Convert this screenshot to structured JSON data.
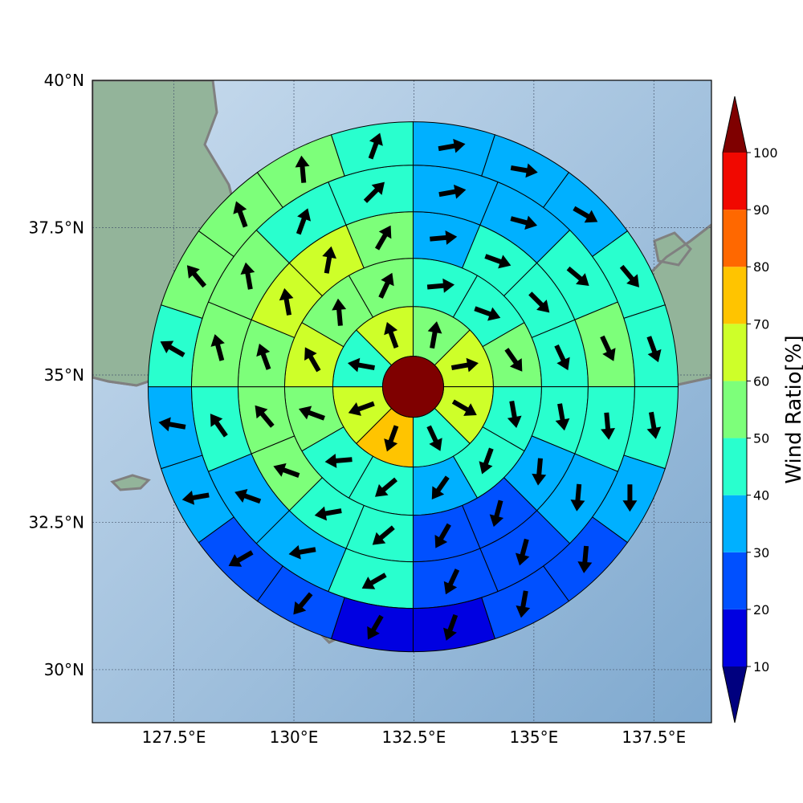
{
  "map": {
    "lat_ticks": [
      {
        "value": 40.0,
        "label": "40°N"
      },
      {
        "value": 37.5,
        "label": "37.5°N"
      },
      {
        "value": 35.0,
        "label": "35°N"
      },
      {
        "value": 32.5,
        "label": "32.5°N"
      },
      {
        "value": 30.0,
        "label": "30°N"
      }
    ],
    "lon_ticks": [
      {
        "value": 127.5,
        "label": "127.5°E"
      },
      {
        "value": 130.0,
        "label": "130°E"
      },
      {
        "value": 132.5,
        "label": "132.5°E"
      },
      {
        "value": 135.0,
        "label": "135°E"
      },
      {
        "value": 137.5,
        "label": "137.5°E"
      }
    ],
    "extent": {
      "lon": [
        125.8,
        138.7
      ],
      "lat": [
        29.1,
        40.0
      ]
    },
    "center": {
      "lon": 132.5,
      "lat": 34.8
    },
    "colors": {
      "ocean_light": "#c9dcee",
      "ocean_dark": "#7fa9cf",
      "land": "#93b49a",
      "coast": "#808080"
    }
  },
  "colorbar": {
    "label": "Wind Ratio[%]",
    "ticks": [
      "10",
      "20",
      "30",
      "40",
      "50",
      "60",
      "70",
      "80",
      "90",
      "100"
    ],
    "bins": [
      {
        "min": 0,
        "max": 10,
        "color": "#00007f"
      },
      {
        "min": 10,
        "max": 20,
        "color": "#0000e1"
      },
      {
        "min": 20,
        "max": 30,
        "color": "#0050ff"
      },
      {
        "min": 30,
        "max": 40,
        "color": "#00b0ff"
      },
      {
        "min": 40,
        "max": 50,
        "color": "#29ffce"
      },
      {
        "min": 50,
        "max": 60,
        "color": "#7dff7a"
      },
      {
        "min": 60,
        "max": 70,
        "color": "#ceff29"
      },
      {
        "min": 70,
        "max": 80,
        "color": "#ffc400"
      },
      {
        "min": 80,
        "max": 90,
        "color": "#ff6800"
      },
      {
        "min": 90,
        "max": 100,
        "color": "#f10800"
      },
      {
        "min": 100,
        "max": 110,
        "color": "#7f0000"
      }
    ]
  },
  "rings": [
    {
      "sectors": 8,
      "values": [
        56,
        66,
        66,
        45,
        75,
        66,
        45,
        66
      ],
      "arrows_deg": [
        10,
        80,
        120,
        155,
        200,
        250,
        280,
        340
      ]
    },
    {
      "sectors": 12,
      "values": [
        45,
        45,
        56,
        45,
        45,
        35,
        45,
        45,
        56,
        66,
        56,
        56
      ],
      "arrows_deg": [
        85,
        110,
        145,
        170,
        200,
        215,
        230,
        265,
        290,
        330,
        355,
        25
      ]
    },
    {
      "sectors": 16,
      "values": [
        35,
        45,
        45,
        45,
        45,
        35,
        25,
        25,
        45,
        45,
        56,
        56,
        56,
        66,
        66,
        56
      ],
      "arrows_deg": [
        85,
        110,
        135,
        155,
        170,
        185,
        195,
        210,
        230,
        260,
        290,
        320,
        340,
        350,
        10,
        30
      ]
    },
    {
      "sectors": 16,
      "values": [
        35,
        35,
        45,
        56,
        45,
        35,
        25,
        25,
        45,
        35,
        35,
        45,
        56,
        56,
        45,
        45
      ],
      "arrows_deg": [
        80,
        105,
        130,
        155,
        175,
        185,
        195,
        205,
        240,
        260,
        290,
        325,
        345,
        350,
        20,
        45
      ]
    },
    {
      "sectors": 20,
      "values": [
        35,
        35,
        35,
        45,
        45,
        45,
        35,
        25,
        25,
        15,
        15,
        25,
        25,
        35,
        35,
        45,
        56,
        56,
        56,
        45
      ],
      "arrows_deg": [
        80,
        100,
        120,
        140,
        160,
        170,
        180,
        185,
        190,
        200,
        210,
        220,
        240,
        260,
        280,
        300,
        320,
        340,
        355,
        20
      ]
    }
  ],
  "center_value": 105
}
